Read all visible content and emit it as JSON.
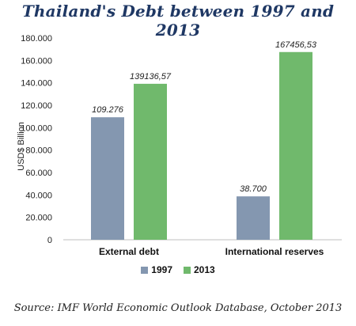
{
  "chart_data": {
    "type": "bar",
    "title": "Thailand's Debt between 1997 and 2013",
    "ylabel": "USD$ Billion",
    "xlabel": "",
    "categories": [
      "External debt",
      "International reserves"
    ],
    "series": [
      {
        "name": "1997",
        "values": [
          109.276,
          38.7
        ],
        "labels": [
          "109.276",
          "38.700"
        ],
        "color": "#8497b0"
      },
      {
        "name": "2013",
        "values": [
          139.13657,
          167.45653
        ],
        "labels": [
          "139136,57",
          "167456,53"
        ],
        "color": "#70b96c"
      }
    ],
    "ylim": [
      0,
      180
    ],
    "yticks": [
      {
        "value": 0,
        "label": "0"
      },
      {
        "value": 20,
        "label": "20.000"
      },
      {
        "value": 40,
        "label": "40.000"
      },
      {
        "value": 60,
        "label": "60.000"
      },
      {
        "value": 80,
        "label": "80.000"
      },
      {
        "value": 100,
        "label": "100.000"
      },
      {
        "value": 120,
        "label": "120.000"
      },
      {
        "value": 140,
        "label": "140.000"
      },
      {
        "value": 160,
        "label": "160.000"
      },
      {
        "value": 180,
        "label": "180.000"
      }
    ],
    "grid": false,
    "legend": "bottom-center"
  },
  "source": "Source: IMF World Economic Outlook Database, October 2013"
}
